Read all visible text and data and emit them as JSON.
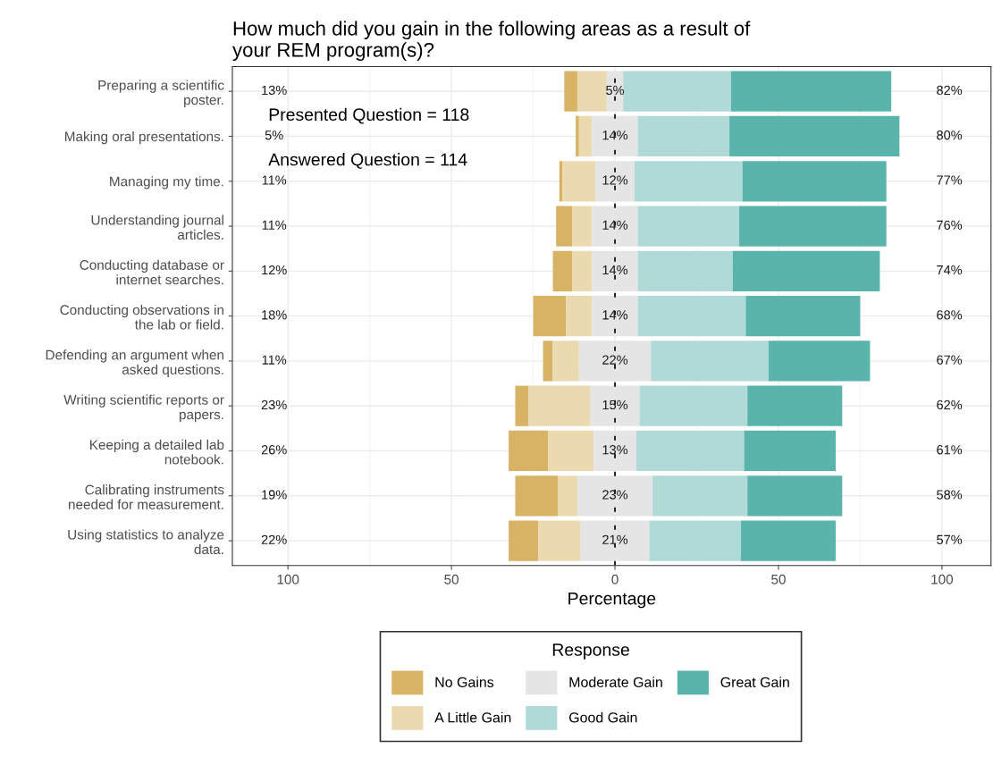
{
  "chart_data": {
    "type": "bar",
    "orientation": "horizontal",
    "title": "How much did you gain in the following areas as a result of\nyour REM program(s)?",
    "xlabel": "Percentage",
    "legend_title": "Response",
    "categories": [
      "Preparing a scientific\nposter.",
      "Making oral presentations.",
      "Managing my time.",
      "Understanding journal\narticles.",
      "Conducting database or\ninternet searches.",
      "Conducting observations in\nthe lab or field.",
      "Defending an argument when\nasked questions.",
      "Writing scientific reports or\npapers.",
      "Keeping a detailed lab\nnotebook.",
      "Calibrating instruments\nneeded for measurement.",
      "Using statistics to analyze\ndata."
    ],
    "series": [
      {
        "name": "No Gains",
        "color": "#d8b365",
        "values": [
          4,
          1,
          1,
          5,
          6,
          10,
          3,
          4,
          12,
          13,
          9
        ],
        "base": [
          -15.5,
          -12,
          -17,
          -18,
          -19,
          -25,
          -22,
          -30.5,
          -32.5,
          -30.5,
          -32.5
        ]
      },
      {
        "name": "A Little Gain",
        "color": "#ebd9b0",
        "values": [
          9,
          4,
          10,
          6,
          6,
          8,
          8,
          19,
          14,
          6,
          13
        ],
        "base": [
          -11.5,
          -11,
          -16,
          -13,
          -13,
          -15,
          -19,
          -26.5,
          -20.5,
          -17.5,
          -23.5
        ]
      },
      {
        "name": "Moderate Gain",
        "color": "#e5e5e5",
        "values": [
          5,
          14,
          12,
          14,
          14,
          14,
          22,
          15,
          13,
          23,
          21
        ],
        "base": [
          -2.5,
          -7,
          -6,
          -7,
          -7,
          -7,
          -11,
          -7.5,
          -6.5,
          -11.5,
          -10.5
        ],
        "value_labels": [
          "5%",
          "14%",
          "12%",
          "14%",
          "14%",
          "14%",
          "22%",
          "15%",
          "13%",
          "23%",
          "21%"
        ]
      },
      {
        "name": "Good Gain",
        "color": "#afdad7",
        "values": [
          33,
          28,
          33,
          31,
          29,
          33,
          36,
          33,
          33,
          29,
          28
        ],
        "base": [
          2.5,
          7,
          6,
          7,
          7,
          7,
          11,
          7.5,
          6.5,
          11.5,
          10.5
        ]
      },
      {
        "name": "Great Gain",
        "color": "#5ab4ac",
        "values": [
          49,
          52,
          44,
          45,
          45,
          35,
          31,
          29,
          28,
          29,
          29
        ],
        "base": [
          35.5,
          35,
          39,
          38,
          36,
          40,
          47,
          40.5,
          39.5,
          40.5,
          38.5
        ]
      }
    ],
    "xlim": [
      -117,
      115
    ],
    "xticks": [
      {
        "value": -100,
        "label": "100"
      },
      {
        "value": -50,
        "label": "50"
      },
      0,
      50,
      100
    ],
    "ref_lines": [
      {
        "axis": "x",
        "value": 0,
        "color": "#000000",
        "line_style": "dashed"
      }
    ],
    "grid": true,
    "legend": "bottom",
    "annotations": [
      "Presented Question = 118",
      "Answered Question = 114",
      "13%",
      "5%",
      "11%",
      "11%",
      "12%",
      "18%",
      "11%",
      "23%",
      "26%",
      "19%",
      "22%",
      "82%",
      "80%",
      "77%",
      "76%",
      "74%",
      "68%",
      "67%",
      "62%",
      "61%",
      "58%",
      "57%"
    ]
  }
}
